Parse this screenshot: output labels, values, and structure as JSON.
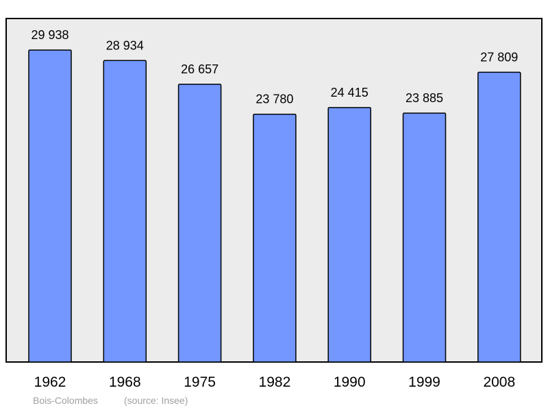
{
  "chart_data": {
    "type": "bar",
    "title": "",
    "xlabel": "",
    "ylabel": "",
    "categories": [
      "1962",
      "1968",
      "1975",
      "1982",
      "1990",
      "1999",
      "2008"
    ],
    "values": [
      29938,
      28934,
      26657,
      23780,
      24415,
      23885,
      27809
    ],
    "value_labels": [
      "29 938",
      "28 934",
      "26 657",
      "23 780",
      "24 415",
      "23 885",
      "27 809"
    ],
    "ylim": [
      0,
      29938
    ],
    "grid": false,
    "legend": "none",
    "bar_color": "#7397ff",
    "plot_background": "#ececec",
    "caption": {
      "place": "Bois-Colombes",
      "source": "(source: Insee)"
    }
  }
}
